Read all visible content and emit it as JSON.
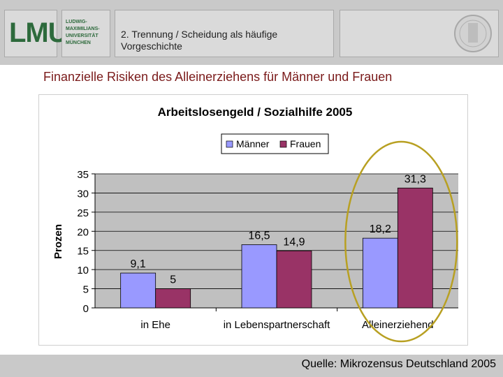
{
  "header": {
    "logo_mark": "LMU",
    "logo_lines": [
      "LUDWIG-",
      "MAXIMILIANS-",
      "UNIVERSITÄT",
      "MÜNCHEN"
    ],
    "title": "2. Trennung / Scheidung als häufige Vorgeschichte"
  },
  "slide_title": "Finanzielle Risiken des Alleinerziehens für Männer und Frauen",
  "source": "Quelle: Mikrozensus Deutschland 2005",
  "colors": {
    "maenner": "#9999ff",
    "frauen": "#993366",
    "highlight": "#b8a022"
  },
  "chart_data": {
    "type": "bar",
    "title": "Arbeitslosengeld / Sozialhilfe 2005",
    "ylabel": "Prozen",
    "xlabel": "",
    "ylim": [
      0,
      35
    ],
    "yticks": [
      0,
      5,
      10,
      15,
      20,
      25,
      30,
      35
    ],
    "categories": [
      "in Ehe",
      "in Lebenspartnerschaft",
      "Alleinerziehend"
    ],
    "series": [
      {
        "name": "Männer",
        "values": [
          9.1,
          16.5,
          18.2
        ],
        "labels": [
          "9,1",
          "16,5",
          "18,2"
        ]
      },
      {
        "name": "Frauen",
        "values": [
          5,
          14.9,
          31.3
        ],
        "labels": [
          "5",
          "14,9",
          "31,3"
        ]
      }
    ],
    "legend": "top",
    "grid": true,
    "highlight_category": "Alleinerziehend"
  }
}
